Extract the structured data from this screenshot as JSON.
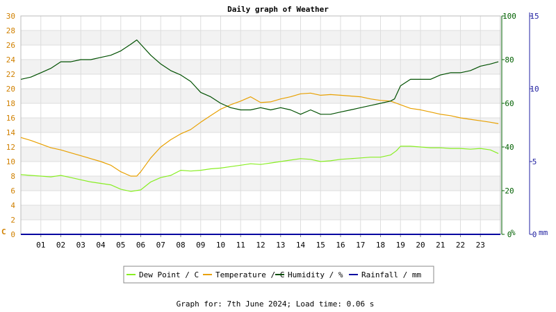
{
  "chart_data": {
    "type": "line",
    "title": "Daily graph of Weather",
    "footer": "Graph for: 7th June 2024; Load time: 0.06 s",
    "x_tick_labels": [
      "01",
      "02",
      "03",
      "04",
      "05",
      "06",
      "07",
      "08",
      "09",
      "10",
      "11",
      "12",
      "13",
      "14",
      "15",
      "16",
      "17",
      "18",
      "19",
      "20",
      "21",
      "22",
      "23"
    ],
    "x_range_hours": [
      0,
      24
    ],
    "left_axis": {
      "unit": "C",
      "range": [
        0,
        30
      ],
      "ticks": [
        "0",
        "2",
        "4",
        "6",
        "8",
        "10",
        "12",
        "14",
        "16",
        "18",
        "20",
        "22",
        "24",
        "26",
        "28",
        "30"
      ]
    },
    "right_axis": {
      "unit": "%",
      "range": [
        0,
        100
      ],
      "ticks": [
        "0",
        "20",
        "40",
        "60",
        "80",
        "100"
      ]
    },
    "far_right_axis": {
      "unit": "mm",
      "range": [
        0,
        15
      ],
      "ticks": [
        "0",
        "5",
        "10",
        "15"
      ]
    },
    "grid": true,
    "legend_placement": "bottom",
    "colors": {
      "dew_point": "#88ee22",
      "temperature": "#e8a000",
      "humidity": "#005000",
      "rainfall": "#0000a0",
      "left_axis": "#d08000",
      "right_axis": "#006000",
      "far_axis": "#1f1fa0"
    },
    "series": [
      {
        "name": "Dew Point / C",
        "axis": "left",
        "x": [
          0,
          0.5,
          1,
          1.5,
          2,
          2.5,
          3,
          3.5,
          4,
          4.5,
          5,
          5.5,
          6,
          6.5,
          7,
          7.5,
          8,
          8.5,
          9,
          9.5,
          10,
          10.5,
          11,
          11.5,
          12,
          12.5,
          13,
          13.5,
          14,
          14.5,
          15,
          15.5,
          16,
          16.5,
          17,
          17.5,
          18,
          18.5,
          18.8,
          19,
          19.5,
          20,
          20.5,
          21,
          21.5,
          22,
          22.5,
          23,
          23.5,
          23.9
        ],
        "y": [
          8.2,
          8.1,
          8.0,
          7.9,
          8.1,
          7.8,
          7.5,
          7.2,
          7.0,
          6.8,
          6.2,
          5.9,
          6.1,
          7.2,
          7.8,
          8.1,
          8.8,
          8.7,
          8.8,
          9.0,
          9.1,
          9.3,
          9.5,
          9.7,
          9.6,
          9.8,
          10.0,
          10.2,
          10.4,
          10.3,
          10.0,
          10.1,
          10.3,
          10.4,
          10.5,
          10.6,
          10.6,
          10.9,
          11.5,
          12.1,
          12.1,
          12.0,
          11.9,
          11.9,
          11.8,
          11.8,
          11.7,
          11.8,
          11.6,
          11.1
        ]
      },
      {
        "name": "Temperature / C",
        "axis": "left",
        "x": [
          0,
          0.5,
          1,
          1.5,
          2,
          2.5,
          3,
          3.5,
          4,
          4.5,
          5,
          5.5,
          5.8,
          6,
          6.5,
          7,
          7.5,
          8,
          8.5,
          9,
          9.5,
          10,
          10.5,
          11,
          11.5,
          12,
          12.5,
          13,
          13.5,
          14,
          14.5,
          15,
          15.5,
          16,
          16.5,
          17,
          17.5,
          18,
          18.5,
          19,
          19.5,
          20,
          20.5,
          21,
          21.5,
          22,
          22.5,
          23,
          23.5,
          23.9
        ],
        "y": [
          13.3,
          12.9,
          12.4,
          11.9,
          11.6,
          11.2,
          10.8,
          10.4,
          10.0,
          9.5,
          8.6,
          8.0,
          8.0,
          8.6,
          10.5,
          12.0,
          13.0,
          13.8,
          14.4,
          15.4,
          16.3,
          17.2,
          17.8,
          18.3,
          18.9,
          18.1,
          18.2,
          18.6,
          18.9,
          19.3,
          19.4,
          19.1,
          19.2,
          19.1,
          19.0,
          18.9,
          18.6,
          18.4,
          18.3,
          17.8,
          17.3,
          17.1,
          16.8,
          16.5,
          16.3,
          16.0,
          15.8,
          15.6,
          15.4,
          15.2
        ]
      },
      {
        "name": "Humidity / %",
        "axis": "right",
        "x": [
          0,
          0.5,
          1,
          1.5,
          2,
          2.5,
          3,
          3.5,
          4,
          4.5,
          5,
          5.5,
          5.8,
          6,
          6.5,
          7,
          7.5,
          8,
          8.5,
          9,
          9.5,
          10,
          10.5,
          11,
          11.5,
          12,
          12.5,
          13,
          13.5,
          14,
          14.5,
          15,
          15.5,
          16,
          16.5,
          17,
          17.5,
          18,
          18.5,
          18.7,
          19,
          19.5,
          20,
          20.5,
          21,
          21.5,
          22,
          22.5,
          23,
          23.5,
          23.9
        ],
        "y": [
          71,
          72,
          74,
          76,
          79,
          79,
          80,
          80,
          81,
          82,
          84,
          87,
          89,
          87,
          82,
          78,
          75,
          73,
          70,
          65,
          63,
          60,
          58,
          57,
          57,
          58,
          57,
          58,
          57,
          55,
          57,
          55,
          55,
          56,
          57,
          58,
          59,
          60,
          61,
          62,
          68,
          71,
          71,
          71,
          73,
          74,
          74,
          75,
          77,
          78,
          79
        ]
      },
      {
        "name": "Rainfall / mm",
        "axis": "far_right",
        "x": [
          0,
          24
        ],
        "y": [
          0,
          0
        ]
      }
    ]
  }
}
